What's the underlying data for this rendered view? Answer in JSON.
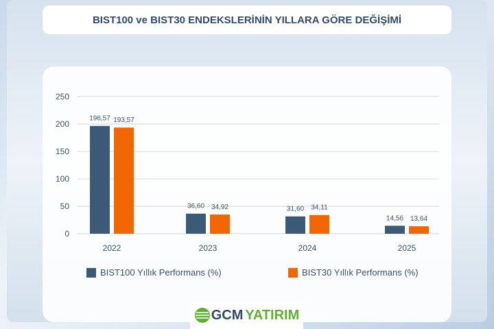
{
  "title": "BIST100 ve BIST30 ENDEKSLERİNİN YILLARA GÖRE DEĞİŞİMİ",
  "logo": {
    "part1": "GCM",
    "part2": "YATIRIM"
  },
  "colors": {
    "bist100": "#3a5a78",
    "bist30": "#f26600",
    "logo_dark": "#2e4a68",
    "logo_green": "#5fb030"
  },
  "chart_data": {
    "type": "bar",
    "categories": [
      "2022",
      "2023",
      "2024",
      "2025"
    ],
    "series": [
      {
        "name": "BIST100 Yıllık Performans (%)",
        "values": [
          196.57,
          36.6,
          31.6,
          14.56
        ],
        "labels": [
          "196,57",
          "36,60",
          "31,60",
          "14,56"
        ]
      },
      {
        "name": "BIST30 Yıllık Performans (%)",
        "values": [
          193.57,
          34.92,
          34.11,
          13.64
        ],
        "labels": [
          "193,57",
          "34,92",
          "34,11",
          "13,64"
        ]
      }
    ],
    "yticks": [
      "0",
      "50",
      "100",
      "150",
      "200",
      "250"
    ],
    "ylim": [
      0,
      250
    ],
    "grid": true,
    "legend": "bottom"
  }
}
